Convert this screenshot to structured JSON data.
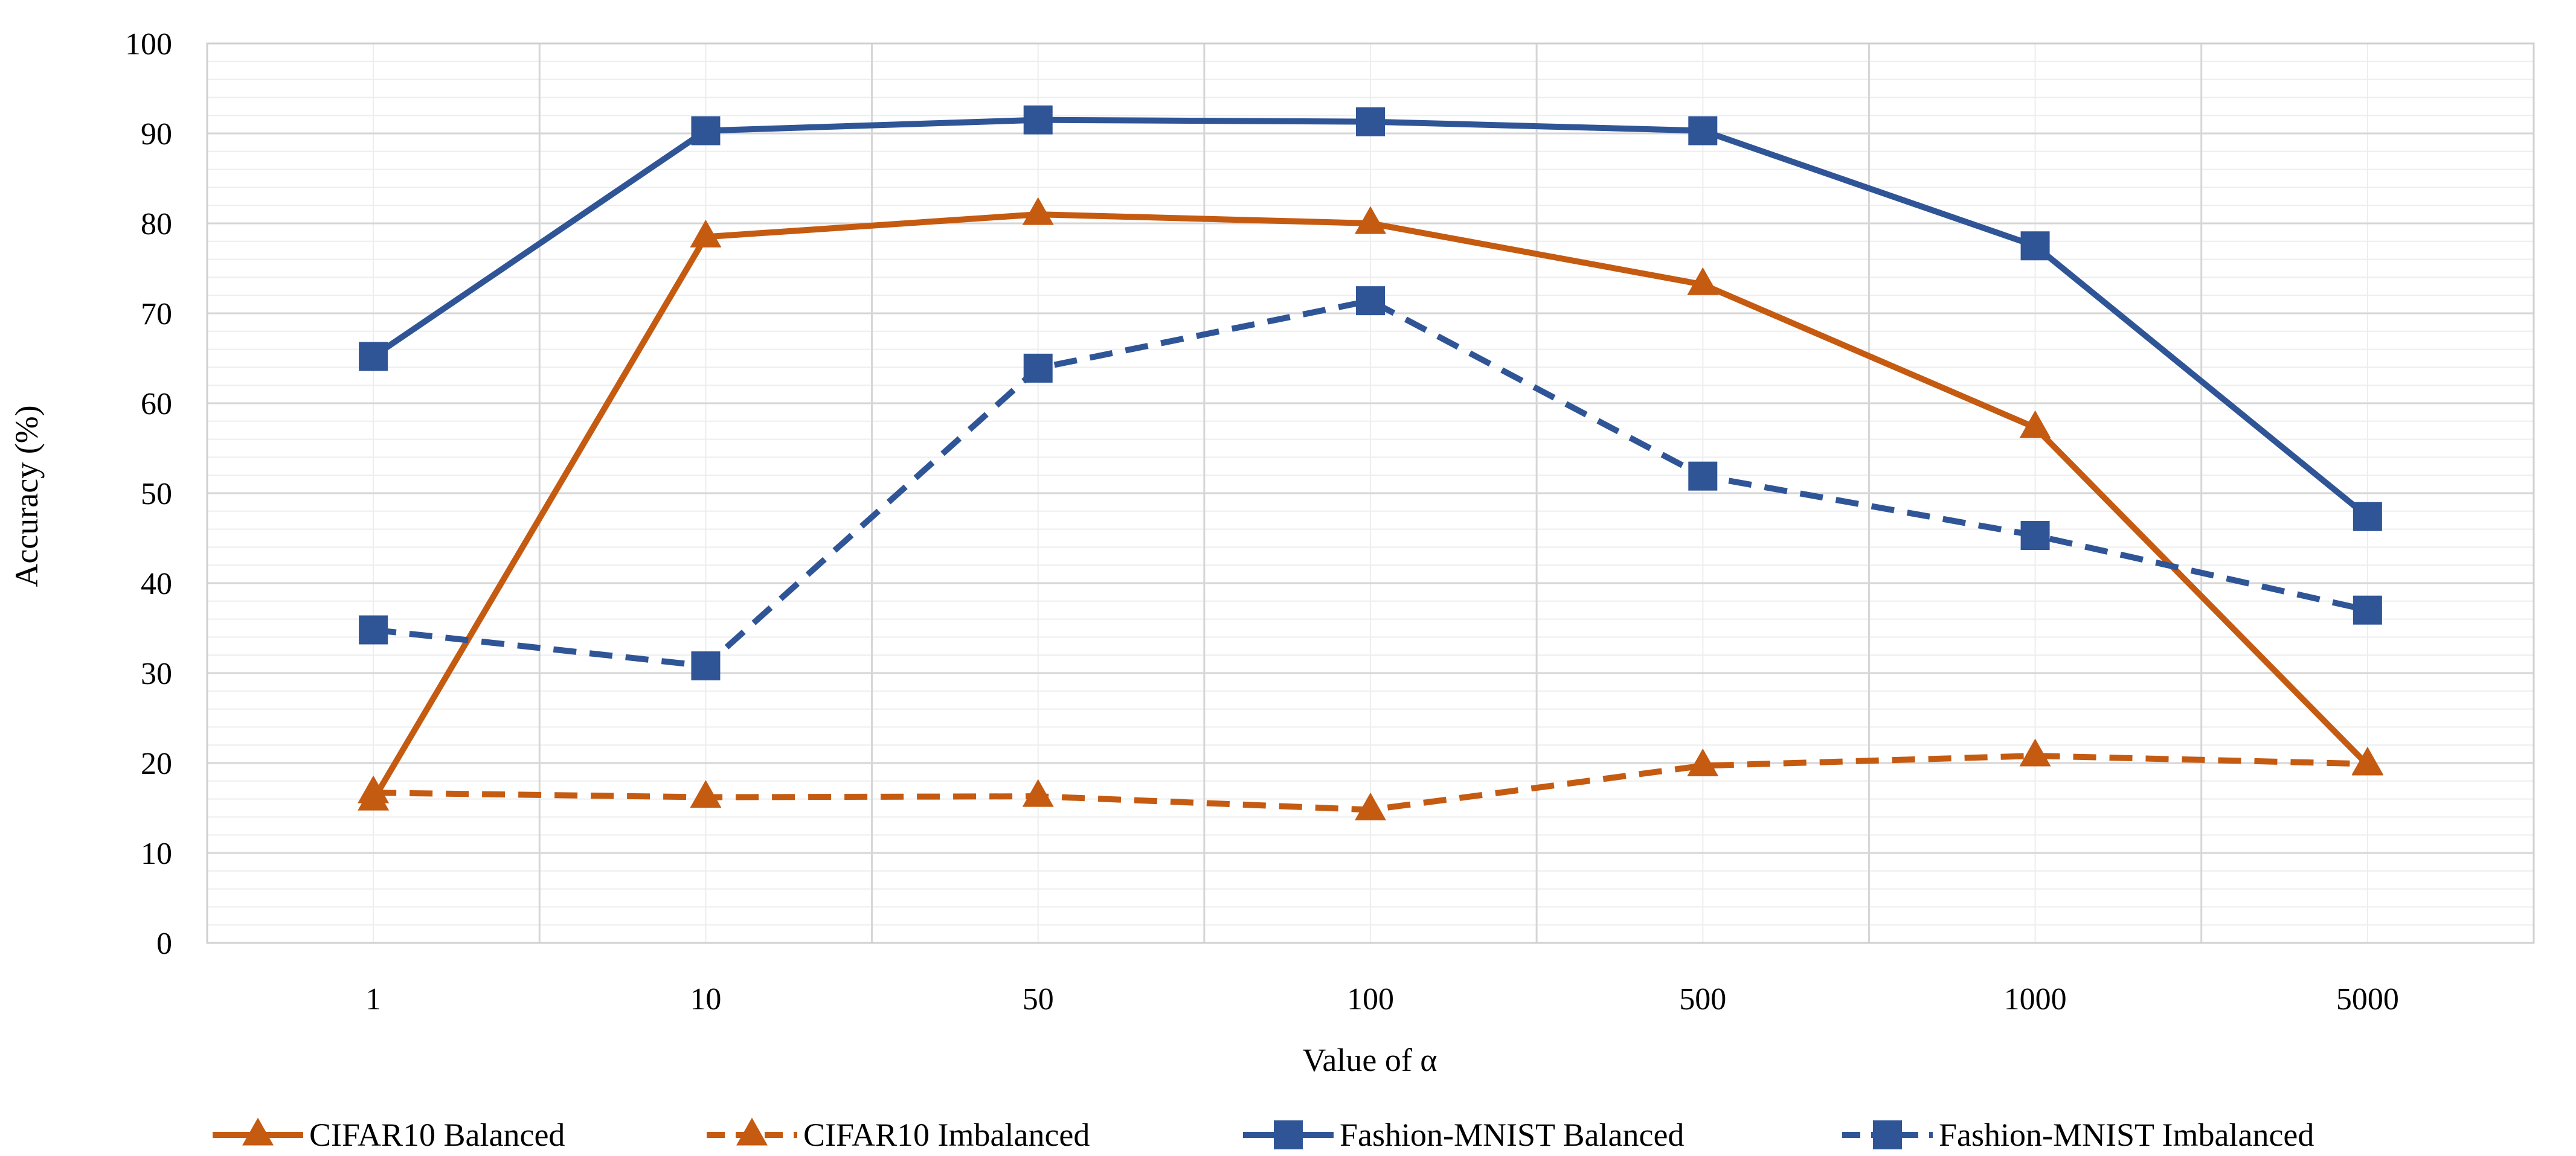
{
  "chart_data": {
    "type": "line",
    "title": "",
    "xlabel": "Value of α",
    "ylabel": "Accuracy (%)",
    "categories": [
      "1",
      "10",
      "50",
      "100",
      "500",
      "1000",
      "5000"
    ],
    "ylim": [
      0,
      100
    ],
    "yticks": [
      0,
      10,
      20,
      30,
      40,
      50,
      60,
      70,
      80,
      90,
      100
    ],
    "ytick_labels": [
      "0",
      "10",
      "20",
      "30",
      "40",
      "50",
      "60",
      "70",
      "80",
      "90",
      "100"
    ],
    "grid": true,
    "legend_position": "bottom",
    "series": [
      {
        "name": "CIFAR10 Balanced",
        "values": [
          15.9,
          78.5,
          81.0,
          80.0,
          73.2,
          57.3,
          19.8
        ],
        "color": "#C55A11",
        "dash": "solid",
        "marker": "triangle"
      },
      {
        "name": "CIFAR10 Imbalanced",
        "values": [
          16.7,
          16.2,
          16.3,
          14.8,
          19.7,
          20.8,
          19.9
        ],
        "color": "#C55A11",
        "dash": "dashed",
        "marker": "triangle"
      },
      {
        "name": "Fashion-MNIST Balanced",
        "values": [
          65.2,
          90.3,
          91.5,
          91.3,
          90.3,
          77.5,
          47.4
        ],
        "color": "#2F5597",
        "dash": "solid",
        "marker": "square"
      },
      {
        "name": "Fashion-MNIST Imbalanced",
        "values": [
          34.8,
          30.8,
          63.9,
          71.4,
          51.9,
          45.3,
          37.0
        ],
        "color": "#2F5597",
        "dash": "dashed",
        "marker": "square"
      }
    ]
  }
}
